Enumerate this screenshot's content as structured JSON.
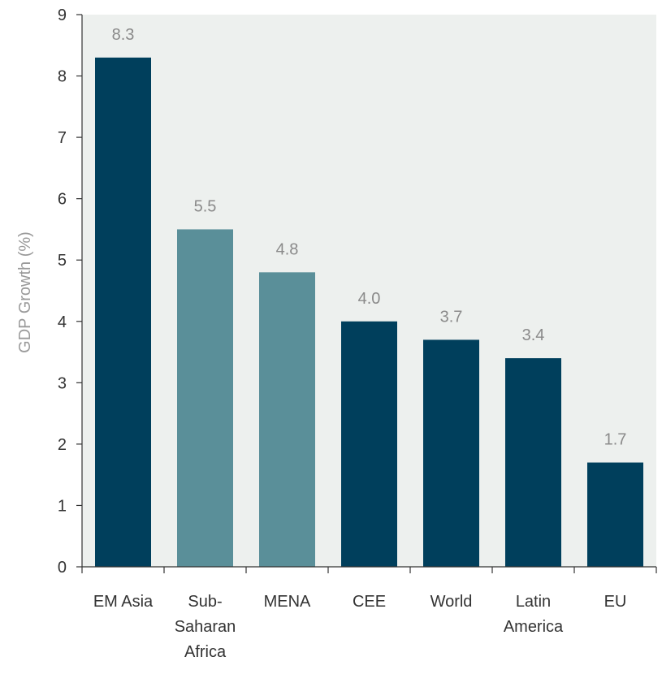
{
  "chart_data": {
    "type": "bar",
    "title": "",
    "xlabel": "",
    "ylabel": "GDP Growth (%)",
    "ylim": [
      0,
      9
    ],
    "yticks": [
      0,
      1,
      2,
      3,
      4,
      5,
      6,
      7,
      8,
      9
    ],
    "grid": false,
    "categories": [
      [
        "EM Asia"
      ],
      [
        "Sub-",
        "Saharan",
        "Africa"
      ],
      [
        "MENA"
      ],
      [
        "CEE"
      ],
      [
        "World"
      ],
      [
        "Latin",
        "America"
      ],
      [
        "EU"
      ]
    ],
    "values": [
      8.3,
      5.5,
      4.8,
      4.0,
      3.7,
      3.4,
      1.7
    ],
    "value_labels": [
      "8.3",
      "5.5",
      "4.8",
      "4.0",
      "3.7",
      "3.4",
      "1.7"
    ],
    "bar_colors": [
      "#003f5c",
      "#5a8f99",
      "#5a8f99",
      "#003f5c",
      "#003f5c",
      "#003f5c",
      "#003f5c"
    ],
    "colors": {
      "plot_background": "#edf0ee",
      "dark_bar": "#003f5c",
      "light_bar": "#5a8f99",
      "axis": "#333333"
    }
  }
}
